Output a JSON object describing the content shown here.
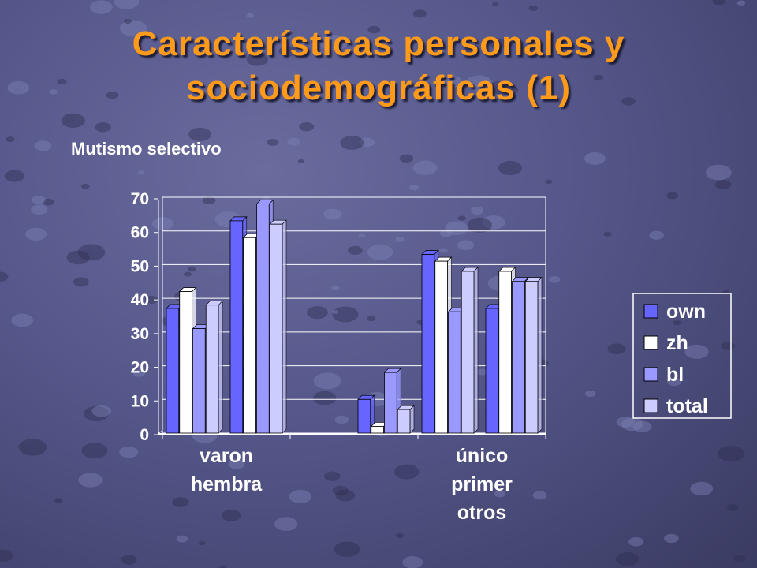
{
  "slide": {
    "title_line1": "Características personales y",
    "title_line2": "sociodemográficas (1)",
    "subtitle": "Mutismo selectivo"
  },
  "colors": {
    "title": "#ff9a1a",
    "own": "#6666ff",
    "zh": "#ffffff",
    "bl": "#9999ff",
    "total": "#ccccff"
  },
  "chart_data": {
    "type": "bar",
    "title": "",
    "xlabel": "",
    "ylabel": "",
    "ylim": [
      0,
      70
    ],
    "yticks": [
      0,
      10,
      20,
      30,
      40,
      50,
      60,
      70
    ],
    "grid": true,
    "legend_position": "right",
    "groups": [
      "varon",
      "hembra",
      "",
      "único",
      "primer",
      "otros"
    ],
    "category_labels": [
      [
        "varon",
        "hembra"
      ],
      [
        "único",
        "primer",
        "otros"
      ]
    ],
    "series": [
      {
        "name": "own",
        "values": [
          37,
          63,
          0,
          10,
          53,
          37
        ]
      },
      {
        "name": "zh",
        "values": [
          42,
          58,
          0,
          2,
          51,
          48
        ]
      },
      {
        "name": "bl",
        "values": [
          31,
          68,
          0,
          18,
          36,
          45
        ]
      },
      {
        "name": "total",
        "values": [
          38,
          62,
          0,
          7,
          48,
          45
        ]
      }
    ]
  }
}
